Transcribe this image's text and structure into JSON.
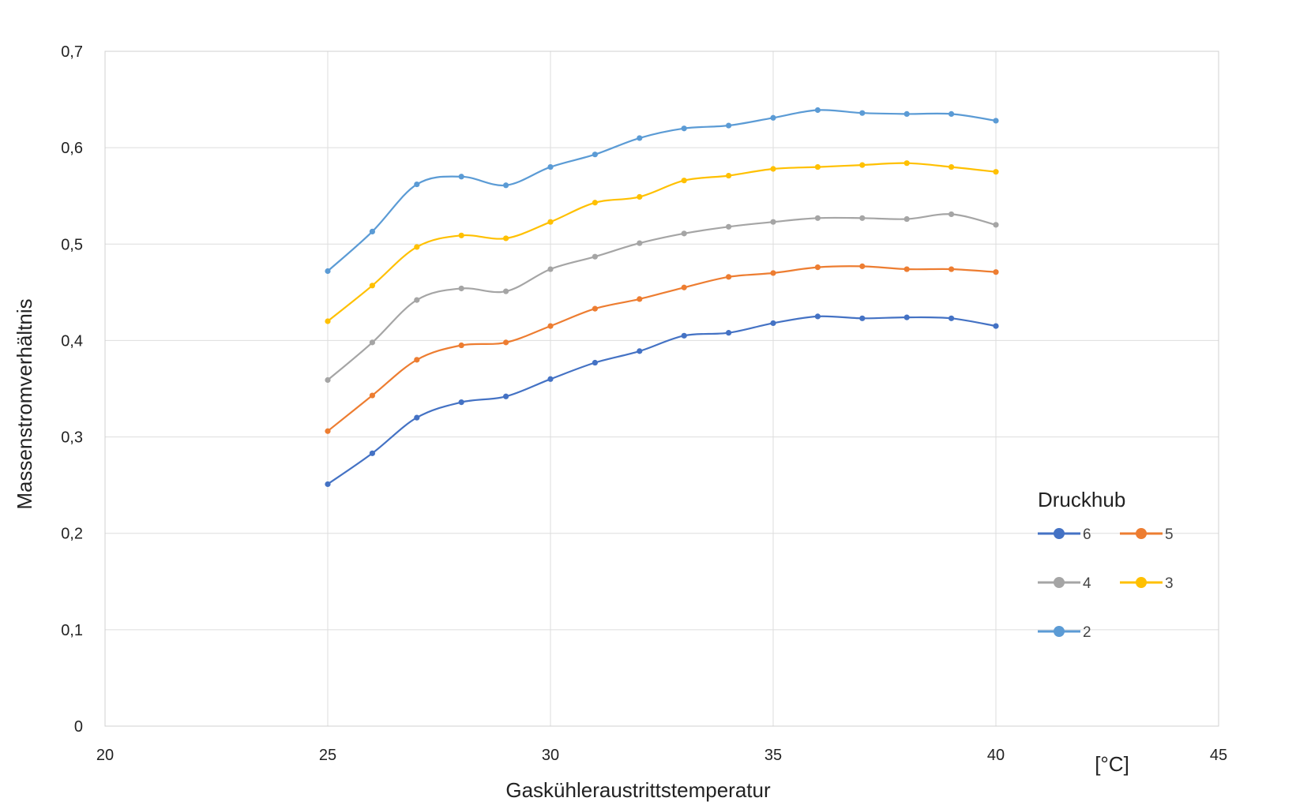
{
  "chart_data": {
    "type": "line",
    "xlabel": "Gaskühleraustrittstemperatur",
    "xunit": "[°C]",
    "ylabel": "Massenstromverhältnis",
    "xlim": [
      20,
      45
    ],
    "ylim": [
      0,
      0.7
    ],
    "x_ticks": [
      "20",
      "25",
      "30",
      "35",
      "40",
      "45"
    ],
    "y_ticks": [
      "0",
      "0,1",
      "0,2",
      "0,3",
      "0,4",
      "0,5",
      "0,6",
      "0,7"
    ],
    "grid": true,
    "legend_title": "Druckhub",
    "legend_position": "right",
    "x": [
      25,
      26,
      27,
      28,
      29,
      30,
      31,
      32,
      33,
      34,
      35,
      36,
      37,
      38,
      39,
      40
    ],
    "series": [
      {
        "name": "6",
        "color": "#4472c4",
        "values": [
          0.251,
          0.283,
          0.32,
          0.336,
          0.342,
          0.36,
          0.377,
          0.389,
          0.405,
          0.408,
          0.418,
          0.425,
          0.423,
          0.424,
          0.423,
          0.415
        ]
      },
      {
        "name": "5",
        "color": "#ed7d31",
        "values": [
          0.306,
          0.343,
          0.38,
          0.395,
          0.398,
          0.415,
          0.433,
          0.443,
          0.455,
          0.466,
          0.47,
          0.476,
          0.477,
          0.474,
          0.474,
          0.471
        ]
      },
      {
        "name": "4",
        "color": "#a5a5a5",
        "values": [
          0.359,
          0.398,
          0.442,
          0.454,
          0.451,
          0.474,
          0.487,
          0.501,
          0.511,
          0.518,
          0.523,
          0.527,
          0.527,
          0.526,
          0.531,
          0.52
        ]
      },
      {
        "name": "3",
        "color": "#ffc000",
        "values": [
          0.42,
          0.457,
          0.497,
          0.509,
          0.506,
          0.523,
          0.543,
          0.549,
          0.566,
          0.571,
          0.578,
          0.58,
          0.582,
          0.584,
          0.58,
          0.575
        ]
      },
      {
        "name": "2",
        "color": "#5b9bd5",
        "values": [
          0.472,
          0.513,
          0.562,
          0.57,
          0.561,
          0.58,
          0.593,
          0.61,
          0.62,
          0.623,
          0.631,
          0.639,
          0.636,
          0.635,
          0.635,
          0.628
        ]
      }
    ]
  }
}
